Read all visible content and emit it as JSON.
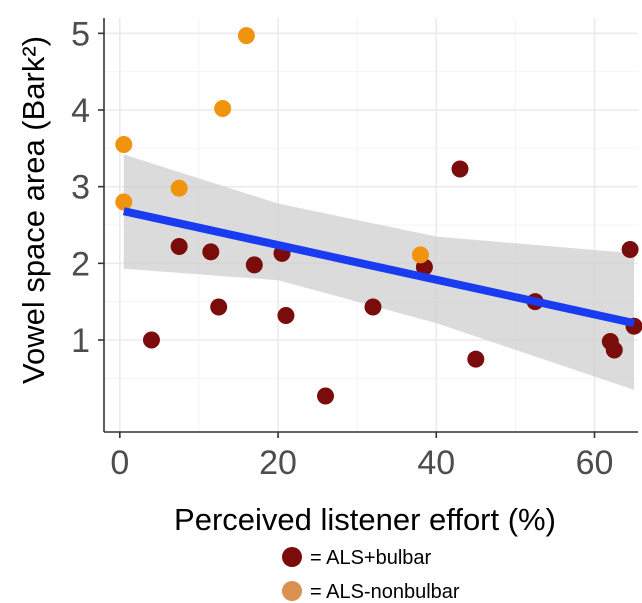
{
  "chart_data": {
    "type": "scatter",
    "xlabel": "Perceived listener effort (%)",
    "ylabel": "Vowel space area (Bark²)",
    "xlim": [
      -2,
      65.5
    ],
    "ylim": [
      -0.2,
      5.2
    ],
    "xticks": [
      0,
      20,
      40,
      60
    ],
    "yticks": [
      1,
      2,
      3,
      4,
      5
    ],
    "grid": true,
    "legend_position": "bottom",
    "series": [
      {
        "name": "= ALS+bulbar",
        "color": "#7b0c0c",
        "points": [
          [
            4,
            1.0
          ],
          [
            7.5,
            2.22
          ],
          [
            11.5,
            2.15
          ],
          [
            12.5,
            1.43
          ],
          [
            17,
            1.98
          ],
          [
            20.5,
            2.13
          ],
          [
            21,
            1.32
          ],
          [
            26,
            0.27
          ],
          [
            32,
            1.43
          ],
          [
            38.5,
            1.95
          ],
          [
            43,
            3.23
          ],
          [
            45,
            0.75
          ],
          [
            52.5,
            1.5
          ],
          [
            62,
            0.98
          ],
          [
            62.5,
            0.87
          ],
          [
            64.5,
            2.18
          ],
          [
            65,
            1.18
          ]
        ]
      },
      {
        "name": "= ALS-nonbulbar",
        "color": "#f0940e",
        "points": [
          [
            0.5,
            3.55
          ],
          [
            0.5,
            2.8
          ],
          [
            7.5,
            2.98
          ],
          [
            13,
            4.02
          ],
          [
            16,
            4.97
          ],
          [
            38,
            2.11
          ]
        ]
      }
    ],
    "trend": {
      "type": "linear",
      "color": "#1a3cf0",
      "x": [
        0.5,
        65
      ],
      "y": [
        2.68,
        1.22
      ],
      "band_color": "#cfcfcf",
      "band_upper": [
        3.42,
        2.78,
        2.35,
        2.13
      ],
      "band_lower": [
        1.93,
        1.78,
        1.22,
        0.35
      ],
      "band_x": [
        0.5,
        20,
        40,
        65
      ]
    }
  },
  "legend": {
    "items": [
      {
        "label": "= ALS+bulbar",
        "color": "#7b0c0c"
      },
      {
        "label": "= ALS-nonbulbar",
        "color": "#d9914f"
      }
    ]
  }
}
